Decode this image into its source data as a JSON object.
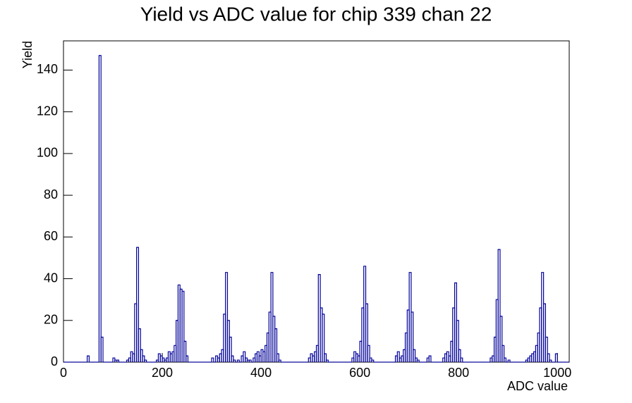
{
  "chart_data": {
    "type": "histogram",
    "title": "Yield vs ADC value for chip 339 chan 22",
    "x_label": "ADC value",
    "y_label": "Yield",
    "color": "#000099",
    "xlim": [
      0,
      1024
    ],
    "ylim": [
      0,
      154
    ],
    "xticks": [
      0,
      200,
      400,
      600,
      800,
      1000
    ],
    "yticks": [
      0,
      20,
      40,
      60,
      80,
      100,
      120,
      140
    ],
    "bins": [
      0,
      4,
      8,
      12,
      16,
      20,
      24,
      28,
      32,
      36,
      40,
      44,
      48,
      52,
      56,
      60,
      64,
      68,
      72,
      76,
      80,
      84,
      88,
      92,
      96,
      100,
      104,
      108,
      112,
      116,
      120,
      124,
      128,
      132,
      136,
      140,
      144,
      148,
      152,
      156,
      160,
      164,
      168,
      172,
      176,
      180,
      184,
      188,
      192,
      196,
      200,
      204,
      208,
      212,
      216,
      220,
      224,
      228,
      232,
      236,
      240,
      244,
      248,
      252,
      256,
      260,
      264,
      268,
      272,
      276,
      280,
      284,
      288,
      292,
      296,
      300,
      304,
      308,
      312,
      316,
      320,
      324,
      328,
      332,
      336,
      340,
      344,
      348,
      352,
      356,
      360,
      364,
      368,
      372,
      376,
      380,
      384,
      388,
      392,
      396,
      400,
      404,
      408,
      412,
      416,
      420,
      424,
      428,
      432,
      436,
      440,
      444,
      448,
      452,
      456,
      460,
      464,
      468,
      472,
      476,
      480,
      484,
      488,
      492,
      496,
      500,
      504,
      508,
      512,
      516,
      520,
      524,
      528,
      532,
      536,
      540,
      544,
      548,
      552,
      556,
      560,
      564,
      568,
      572,
      576,
      580,
      584,
      588,
      592,
      596,
      600,
      604,
      608,
      612,
      616,
      620,
      624,
      628,
      632,
      636,
      640,
      644,
      648,
      652,
      656,
      660,
      664,
      668,
      672,
      676,
      680,
      684,
      688,
      692,
      696,
      700,
      704,
      708,
      712,
      716,
      720,
      724,
      728,
      732,
      736,
      740,
      744,
      748,
      752,
      756,
      760,
      764,
      768,
      772,
      776,
      780,
      784,
      788,
      792,
      796,
      800,
      804,
      808,
      812,
      816,
      820,
      824,
      828,
      832,
      836,
      840,
      844,
      848,
      852,
      856,
      860,
      864,
      868,
      872,
      876,
      880,
      884,
      888,
      892,
      896,
      900,
      904,
      908,
      912,
      916,
      920,
      924,
      928,
      932,
      936,
      940,
      944,
      948,
      952,
      956,
      960,
      964,
      968,
      972,
      976,
      980,
      984,
      988,
      992,
      996,
      1000,
      1004,
      1008,
      1012,
      1016,
      1020,
      1024
    ],
    "values": [
      0,
      0,
      0,
      0,
      0,
      0,
      0,
      0,
      0,
      0,
      0,
      0,
      3,
      0,
      0,
      0,
      0,
      0,
      147,
      12,
      0,
      0,
      0,
      0,
      0,
      2,
      1,
      1,
      0,
      0,
      0,
      0,
      1,
      2,
      5,
      4,
      28,
      55,
      16,
      6,
      3,
      1,
      0,
      0,
      0,
      0,
      0,
      1,
      4,
      3,
      2,
      1,
      2,
      5,
      4,
      5,
      8,
      20,
      37,
      35,
      34,
      10,
      3,
      0,
      0,
      0,
      0,
      0,
      0,
      0,
      0,
      0,
      0,
      0,
      0,
      2,
      0,
      3,
      2,
      4,
      6,
      23,
      43,
      20,
      12,
      3,
      1,
      0,
      1,
      0,
      3,
      5,
      2,
      1,
      1,
      0,
      2,
      4,
      5,
      3,
      6,
      5,
      8,
      14,
      24,
      43,
      22,
      16,
      4,
      1,
      0,
      0,
      0,
      0,
      0,
      0,
      0,
      0,
      0,
      0,
      0,
      0,
      0,
      0,
      2,
      4,
      3,
      5,
      8,
      42,
      26,
      23,
      4,
      1,
      0,
      0,
      0,
      0,
      0,
      0,
      0,
      0,
      0,
      0,
      0,
      0,
      2,
      5,
      4,
      3,
      10,
      26,
      46,
      28,
      8,
      2,
      1,
      0,
      0,
      0,
      0,
      0,
      0,
      0,
      0,
      0,
      0,
      0,
      3,
      5,
      2,
      3,
      6,
      14,
      25,
      43,
      24,
      6,
      2,
      1,
      0,
      0,
      0,
      0,
      2,
      3,
      0,
      0,
      0,
      0,
      0,
      0,
      2,
      4,
      5,
      3,
      10,
      26,
      38,
      20,
      6,
      2,
      0,
      0,
      0,
      0,
      0,
      0,
      0,
      0,
      0,
      0,
      0,
      0,
      0,
      0,
      2,
      3,
      12,
      30,
      54,
      22,
      8,
      2,
      0,
      1,
      0,
      0,
      0,
      0,
      0,
      0,
      0,
      0,
      1,
      2,
      3,
      4,
      5,
      8,
      14,
      26,
      43,
      28,
      12,
      4,
      1,
      0,
      0,
      4,
      0,
      0,
      0,
      0,
      0,
      0
    ]
  }
}
